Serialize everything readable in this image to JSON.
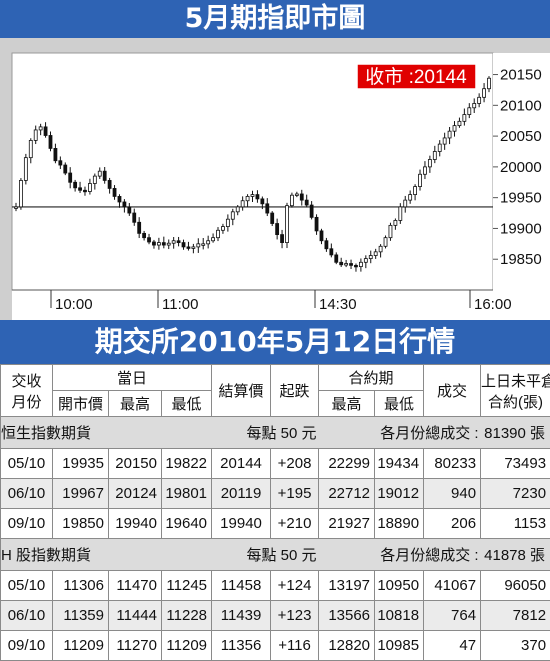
{
  "banner_top": "5月期指即市圖",
  "banner_mid": "期交所2010年5月12日行情",
  "close_label": "收市 :20144",
  "chart_data": {
    "type": "candlestick",
    "title": "5月期指即市圖",
    "close_value": 20144,
    "reference_level": 19935,
    "y_ticks": [
      20150,
      20100,
      20050,
      20000,
      19950,
      19900,
      19850
    ],
    "x_ticks": [
      "10:00",
      "11:00",
      "14:30",
      "16:00"
    ],
    "ylim": [
      19800,
      20185
    ],
    "grid": false,
    "x_index": [
      0,
      5,
      10,
      15,
      20,
      25,
      30,
      35,
      40,
      45,
      50,
      55,
      60,
      65,
      70,
      75,
      80,
      85,
      90,
      95,
      100,
      105,
      110,
      115,
      120,
      125,
      130,
      135,
      140,
      145,
      150,
      155,
      160,
      165,
      170,
      175,
      180,
      185,
      190,
      195,
      200,
      205,
      210,
      215,
      220,
      225,
      230,
      235,
      240,
      245,
      250,
      255,
      260,
      265,
      270,
      275,
      280,
      285,
      290,
      295,
      300,
      305,
      310,
      315,
      320,
      325,
      330,
      335,
      340,
      345,
      350,
      355,
      360,
      365,
      370,
      375,
      380,
      385,
      390,
      395,
      400,
      405,
      410,
      415,
      420,
      425,
      430,
      435,
      440,
      445,
      450,
      455,
      460,
      465,
      470,
      475,
      480
    ],
    "series": [
      {
        "values": [
          19935,
          19978,
          20015,
          20043,
          20060,
          20065,
          20051,
          20030,
          20010,
          20003,
          19990,
          19975,
          19966,
          19962,
          19960,
          19973,
          19985,
          19993,
          19978,
          19965,
          19952,
          19943,
          19935,
          19925,
          19910,
          19892,
          19885,
          19878,
          19873,
          19877,
          19873,
          19876,
          19880,
          19877,
          19870,
          19868,
          19870,
          19875,
          19875,
          19880,
          19885,
          19897,
          19903,
          19915,
          19927,
          19935,
          19945,
          19952,
          19955,
          19948,
          19940,
          19925,
          19908,
          19890,
          19877,
          19937,
          19954,
          19956,
          19946,
          19938,
          19918,
          19896,
          19880,
          19867,
          19857,
          19845,
          19841,
          19843,
          19840,
          19838,
          19845,
          19851,
          19856,
          19862,
          19871,
          19885,
          19905,
          19913,
          19935,
          19946,
          19955,
          19968,
          19988,
          20000,
          20012,
          20025,
          20037,
          20047,
          20058,
          20067,
          20074,
          20085,
          20096,
          20103,
          20113,
          20127,
          20144
        ]
      }
    ]
  },
  "table": {
    "head1": {
      "delivery_month_l1": "交收",
      "delivery_month_l2": "月份",
      "same_day": "當日",
      "settle": "結算價",
      "change": "起跌",
      "contract_period": "合約期",
      "turnover": "成交",
      "oi_l1": "上日未平倉",
      "oi_l2": "合約(張)"
    },
    "head2": {
      "open": "開市價",
      "high": "最高",
      "low": "最低",
      "c_high": "最高",
      "c_low": "最低"
    },
    "sections": [
      {
        "name": "恒生指數期貨",
        "point_value": "每點 50 元",
        "total_label": "各月份總成交 :",
        "total_value": "81390 張",
        "rows": [
          {
            "month": "05/10",
            "open": "19935",
            "high": "20150",
            "low": "19822",
            "settle": "20144",
            "change": "+208",
            "c_high": "22299",
            "c_low": "19434",
            "volume": "80233",
            "oi": "73493"
          },
          {
            "month": "06/10",
            "open": "19967",
            "high": "20124",
            "low": "19801",
            "settle": "20119",
            "change": "+195",
            "c_high": "22712",
            "c_low": "19012",
            "volume": "940",
            "oi": "7230"
          },
          {
            "month": "09/10",
            "open": "19850",
            "high": "19940",
            "low": "19640",
            "settle": "19940",
            "change": "+210",
            "c_high": "21927",
            "c_low": "18890",
            "volume": "206",
            "oi": "1153"
          }
        ]
      },
      {
        "name": "H 股指數期貨",
        "point_value": "每點 50 元",
        "total_label": "各月份總成交 :",
        "total_value": "41878 張",
        "rows": [
          {
            "month": "05/10",
            "open": "11306",
            "high": "11470",
            "low": "11245",
            "settle": "11458",
            "change": "+124",
            "c_high": "13197",
            "c_low": "10950",
            "volume": "41067",
            "oi": "96050"
          },
          {
            "month": "06/10",
            "open": "11359",
            "high": "11444",
            "low": "11228",
            "settle": "11439",
            "change": "+123",
            "c_high": "13566",
            "c_low": "10818",
            "volume": "764",
            "oi": "7812"
          },
          {
            "month": "09/10",
            "open": "11209",
            "high": "11270",
            "low": "11209",
            "settle": "11356",
            "change": "+116",
            "c_high": "12820",
            "c_low": "10985",
            "volume": "47",
            "oi": "370"
          }
        ]
      }
    ]
  },
  "colors": {
    "banner": "#2e63b4",
    "close_box": "#e00000",
    "candles": "#111111",
    "chart_bg": "#ffffff",
    "frame": "#cfcfcf"
  }
}
